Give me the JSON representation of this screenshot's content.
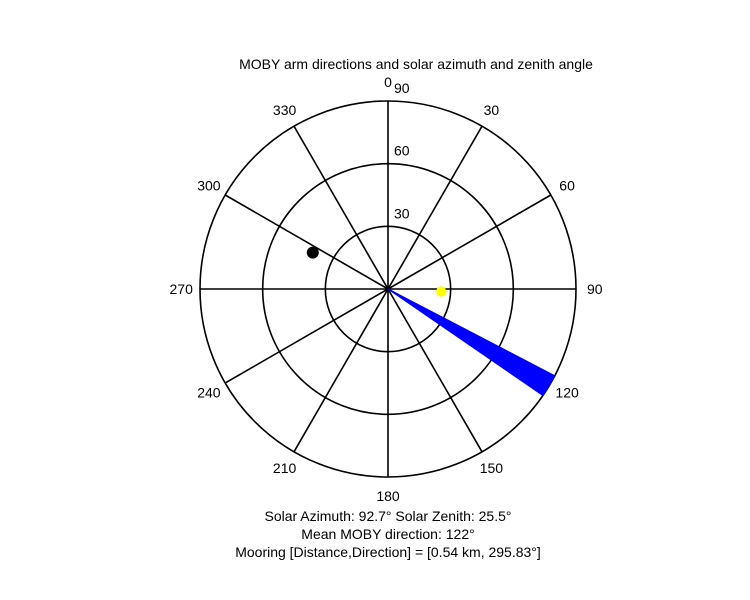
{
  "chart_data": {
    "type": "polar",
    "title": "MOBY arm directions and solar azimuth and zenith angle",
    "angle_ticks": [
      "0",
      "30",
      "60",
      "90",
      "120",
      "150",
      "180",
      "210",
      "240",
      "270",
      "300",
      "330"
    ],
    "radial_ticks": [
      "30",
      "60",
      "90"
    ],
    "rlim": [
      0,
      90
    ],
    "grid": true,
    "arm_directions": {
      "from_deg": 117.5,
      "to_deg": 124.5,
      "radius": 90,
      "color": "#0000ff"
    },
    "sun": {
      "azimuth_deg": 92.7,
      "zenith_deg": 25.5,
      "color": "#ffff00"
    },
    "mooring": {
      "direction_deg": 295.83,
      "radius": 40,
      "color": "#000000"
    },
    "captions": {
      "line1": "Solar Azimuth: 92.7°    Solar Zenith: 25.5°",
      "line2": "Mean MOBY direction: 122°",
      "line3": "Mooring [Distance,Direction] = [0.54 km, 295.83°]"
    }
  }
}
